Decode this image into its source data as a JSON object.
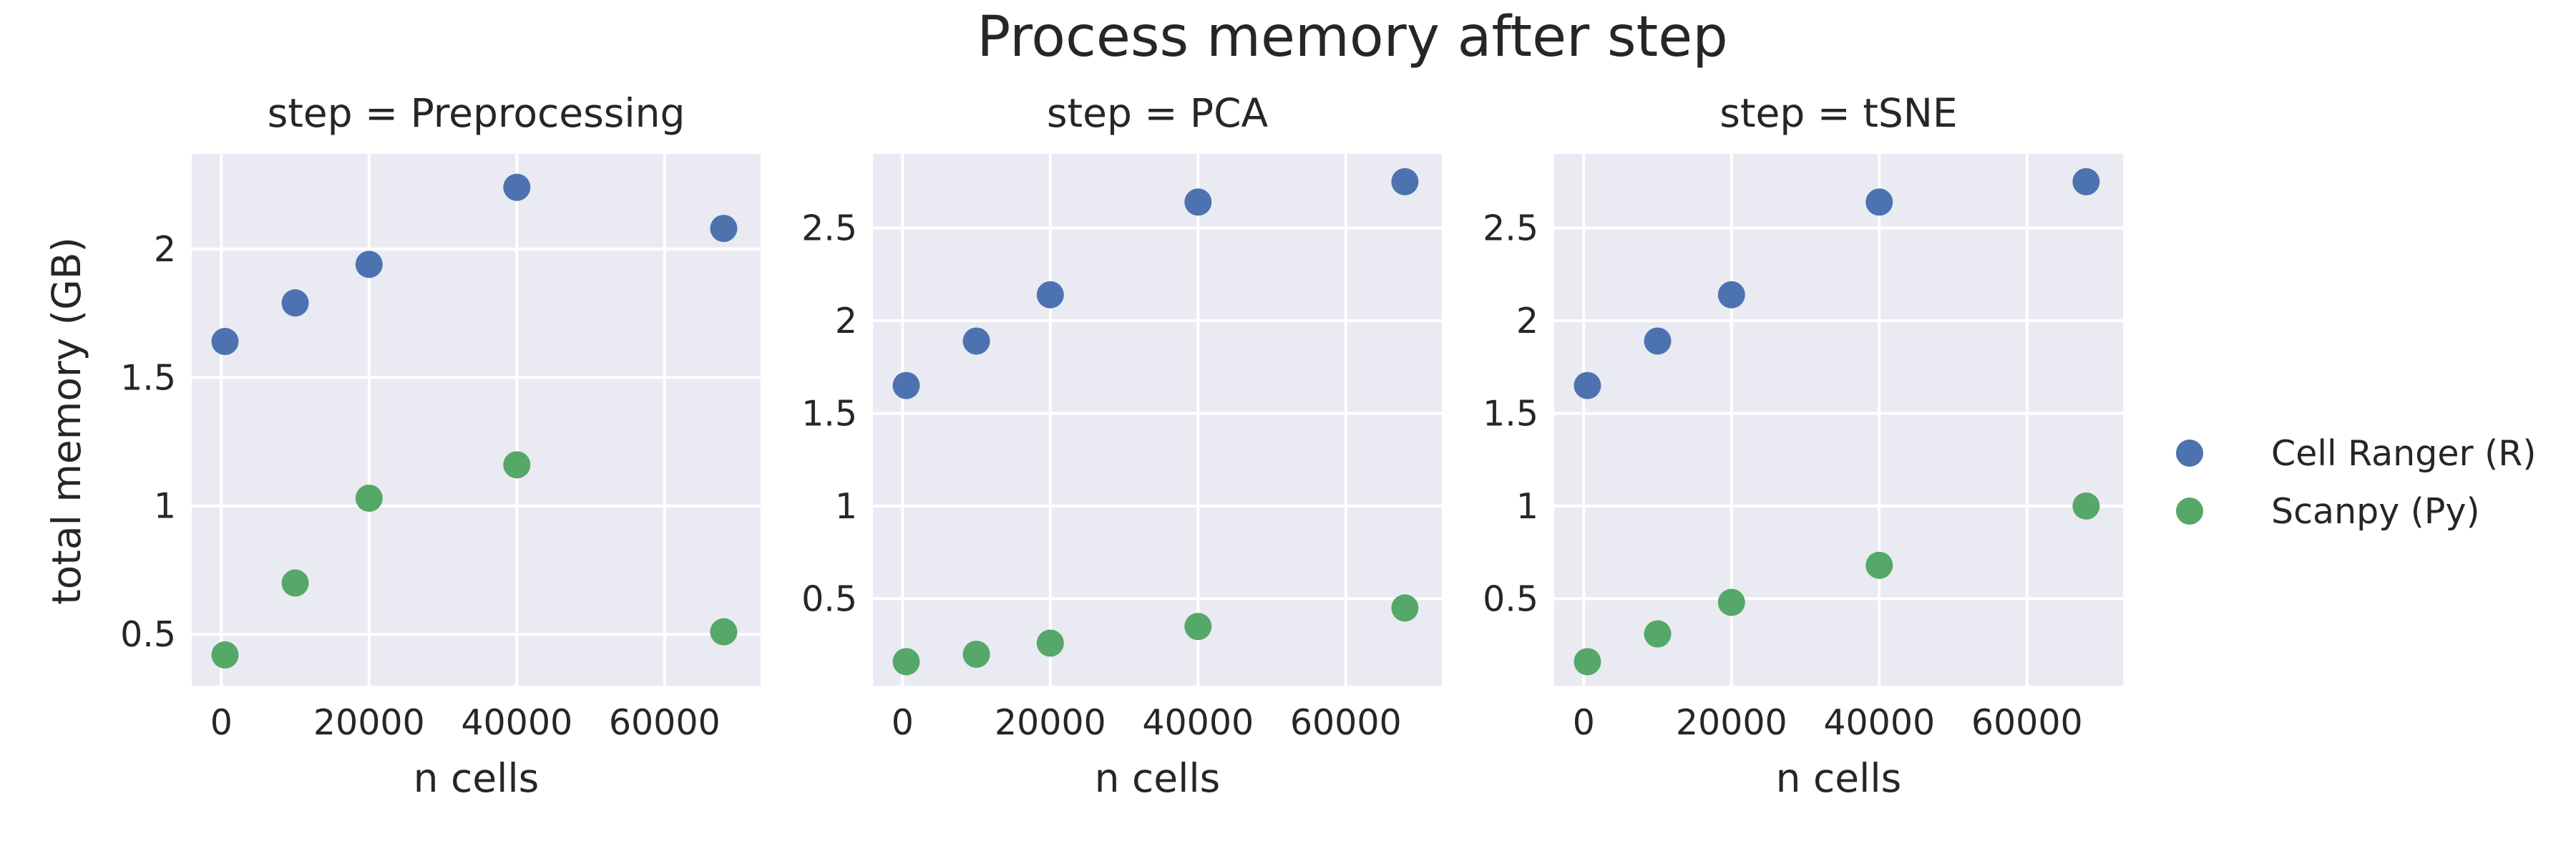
{
  "figure": {
    "title": "Process memory after step",
    "ylabel": "total memory (GB)",
    "xlabel": "n cells"
  },
  "legend": {
    "placement": "right",
    "items": [
      {
        "label": "Cell Ranger (R)",
        "color": "#4c72b0"
      },
      {
        "label": "Scanpy (Py)",
        "color": "#55a868"
      }
    ]
  },
  "style": {
    "plot_background": "#eaeaf2",
    "grid_color": "#ffffff"
  },
  "chart_data": [
    {
      "type": "scatter",
      "title": "step = Preprocessing",
      "xlabel": "n cells",
      "ylabel": "total memory (GB)",
      "xlim": [
        -4000,
        73000
      ],
      "ylim": [
        0.3,
        2.37
      ],
      "xticks": [
        0,
        20000,
        40000,
        60000
      ],
      "yticks": [
        0.5,
        1.0,
        1.5,
        2.0
      ],
      "grid": true,
      "series": [
        {
          "name": "Cell Ranger (R)",
          "x": [
            500,
            10000,
            20000,
            40000,
            68000
          ],
          "y": [
            1.64,
            1.79,
            1.94,
            2.24,
            2.08
          ]
        },
        {
          "name": "Scanpy (Py)",
          "x": [
            500,
            10000,
            20000,
            40000,
            68000
          ],
          "y": [
            0.42,
            0.7,
            1.03,
            1.16,
            0.51
          ]
        }
      ]
    },
    {
      "type": "scatter",
      "title": "step = PCA",
      "xlabel": "n cells",
      "ylabel": "",
      "xlim": [
        -4000,
        73000
      ],
      "ylim": [
        0.03,
        2.9
      ],
      "xticks": [
        0,
        20000,
        40000,
        60000
      ],
      "yticks": [
        0.5,
        1.0,
        1.5,
        2.0,
        2.5
      ],
      "grid": true,
      "series": [
        {
          "name": "Cell Ranger (R)",
          "x": [
            500,
            10000,
            20000,
            40000,
            68000
          ],
          "y": [
            1.65,
            1.89,
            2.14,
            2.64,
            2.75
          ]
        },
        {
          "name": "Scanpy (Py)",
          "x": [
            500,
            10000,
            20000,
            40000,
            68000
          ],
          "y": [
            0.16,
            0.2,
            0.26,
            0.35,
            0.45
          ]
        }
      ]
    },
    {
      "type": "scatter",
      "title": "step = tSNE",
      "xlabel": "n cells",
      "ylabel": "",
      "xlim": [
        -4000,
        73000
      ],
      "ylim": [
        0.03,
        2.9
      ],
      "xticks": [
        0,
        20000,
        40000,
        60000
      ],
      "yticks": [
        0.5,
        1.0,
        1.5,
        2.0,
        2.5
      ],
      "grid": true,
      "series": [
        {
          "name": "Cell Ranger (R)",
          "x": [
            500,
            10000,
            20000,
            40000,
            68000
          ],
          "y": [
            1.65,
            1.89,
            2.14,
            2.64,
            2.75
          ]
        },
        {
          "name": "Scanpy (Py)",
          "x": [
            500,
            10000,
            20000,
            40000,
            68000
          ],
          "y": [
            0.16,
            0.31,
            0.48,
            0.68,
            1.0
          ]
        }
      ]
    }
  ]
}
